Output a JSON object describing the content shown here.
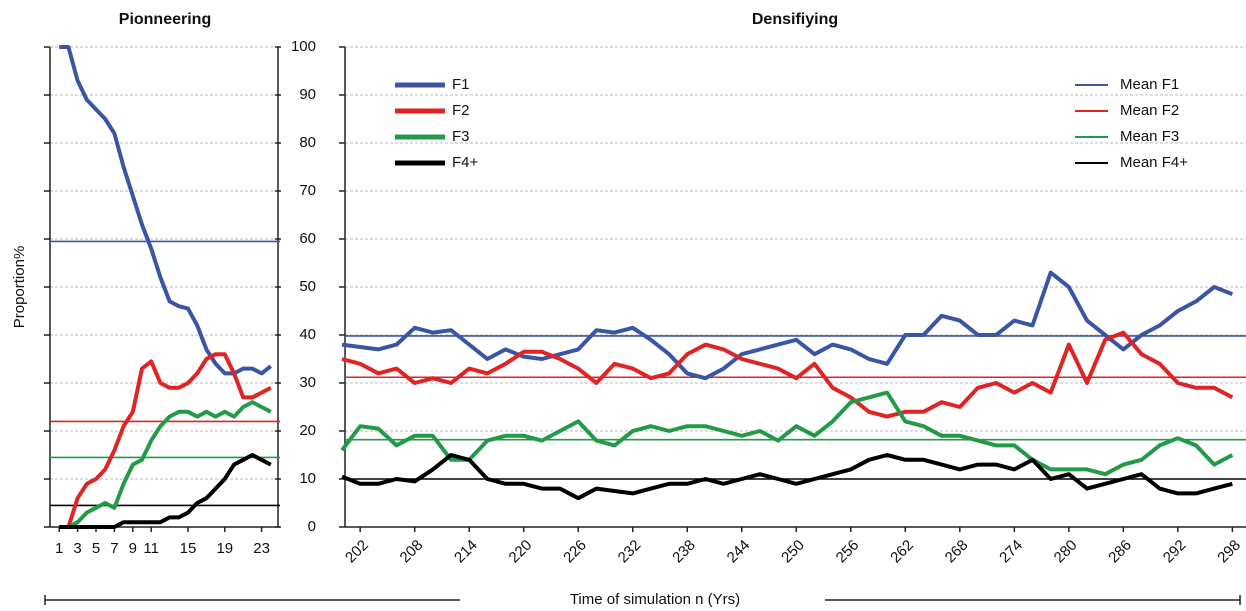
{
  "chart_data": [
    {
      "type": "line",
      "title": "Pionneering",
      "ylabel": "Proportion%",
      "x": [
        1,
        2,
        3,
        4,
        5,
        6,
        7,
        8,
        9,
        10,
        11,
        12,
        13,
        14,
        15,
        16,
        17,
        18,
        19,
        20,
        21,
        22,
        23,
        24
      ],
      "xlim": [
        0,
        25
      ],
      "xticks": [
        1,
        3,
        5,
        7,
        9,
        11,
        15,
        19,
        23
      ],
      "ylim": [
        0,
        100
      ],
      "yticks": [
        0,
        10,
        20,
        30,
        40,
        50,
        60,
        70,
        80,
        90,
        100
      ],
      "grid": true,
      "series": [
        {
          "name": "F1",
          "color": "#3a55a4",
          "values": [
            100,
            100,
            93,
            89,
            87,
            85,
            82,
            75,
            69,
            63,
            58,
            52,
            47,
            46,
            45.5,
            42,
            37,
            34,
            32,
            32,
            33,
            33,
            32,
            33.5
          ]
        },
        {
          "name": "F2",
          "color": "#e02424",
          "values": [
            0,
            0,
            6,
            9,
            10,
            12,
            16,
            21,
            24,
            33,
            34.5,
            30,
            29,
            29,
            30,
            32,
            35,
            36,
            36,
            32,
            27,
            27,
            28,
            29
          ]
        },
        {
          "name": "F3",
          "color": "#239a48",
          "values": [
            0,
            0,
            1,
            3,
            4,
            5,
            4,
            9,
            13,
            14,
            18,
            21,
            23,
            24,
            24,
            23,
            24,
            23,
            24,
            23,
            25,
            26,
            25,
            24
          ]
        },
        {
          "name": "F4+",
          "color": "#000000",
          "values": [
            0,
            0,
            0,
            0,
            0,
            0,
            0,
            1,
            1,
            1,
            1,
            1,
            2,
            2,
            3,
            5,
            6,
            8,
            10,
            13,
            14,
            15,
            14,
            13
          ]
        }
      ],
      "means": [
        {
          "color": "#3a55a4",
          "value": 59.5
        },
        {
          "color": "#e02424",
          "value": 22
        },
        {
          "color": "#239a48",
          "value": 14.5
        },
        {
          "color": "#000000",
          "value": 4.5
        }
      ]
    },
    {
      "type": "line",
      "title": "Densifiying",
      "xlabel": "Time of simulation n (Yrs)",
      "x": [
        200,
        202,
        204,
        206,
        208,
        210,
        212,
        214,
        216,
        218,
        220,
        222,
        224,
        226,
        228,
        230,
        232,
        234,
        236,
        238,
        240,
        242,
        244,
        246,
        248,
        250,
        252,
        254,
        256,
        258,
        260,
        262,
        264,
        266,
        268,
        270,
        272,
        274,
        276,
        278,
        280,
        282,
        284,
        286,
        288,
        290,
        292,
        294,
        296,
        298
      ],
      "xlim": [
        200,
        299.5
      ],
      "xticks": [
        202,
        208,
        214,
        220,
        226,
        232,
        238,
        244,
        250,
        256,
        262,
        268,
        274,
        280,
        286,
        292,
        298
      ],
      "ylim": [
        0,
        100
      ],
      "yticks": [
        0,
        10,
        20,
        30,
        40,
        50,
        60,
        70,
        80,
        90,
        100
      ],
      "grid": true,
      "legend": "upper left",
      "means_legend": "upper right",
      "series": [
        {
          "name": "F1",
          "color": "#3a55a4",
          "values": [
            38,
            37.5,
            37,
            38,
            41.5,
            40.5,
            41,
            38,
            35,
            37,
            35.5,
            35,
            36,
            37,
            41,
            40.5,
            41.5,
            39,
            36,
            32,
            31,
            33,
            36,
            37,
            38,
            39,
            36,
            38,
            37,
            35,
            34,
            40,
            40,
            44,
            43,
            40,
            40,
            43,
            42,
            53,
            50,
            43,
            40,
            37,
            40,
            42,
            45,
            47,
            50,
            48.5
          ]
        },
        {
          "name": "F2",
          "color": "#e02424",
          "values": [
            35,
            34,
            32,
            33,
            30,
            31,
            30,
            33,
            32,
            34,
            36.5,
            36.5,
            35,
            33,
            30,
            34,
            33,
            31,
            32,
            36,
            38,
            37,
            35,
            34,
            33,
            31,
            34,
            29,
            27,
            24,
            23,
            24,
            24,
            26,
            25,
            29,
            30,
            28,
            30,
            28,
            38,
            30,
            39,
            40.5,
            36,
            34,
            30,
            29,
            29,
            27
          ]
        },
        {
          "name": "F3",
          "color": "#239a48",
          "values": [
            16,
            21,
            20.5,
            17,
            19,
            19,
            14,
            14,
            18,
            19,
            19,
            18,
            20,
            22,
            18,
            17,
            20,
            21,
            20,
            21,
            21,
            20,
            19,
            20,
            18,
            21,
            19,
            22,
            26,
            27,
            28,
            22,
            21,
            19,
            19,
            18,
            17,
            17,
            14,
            12,
            12,
            12,
            11,
            13,
            14,
            17,
            18.5,
            17,
            13,
            15
          ]
        },
        {
          "name": "F4+",
          "color": "#000000",
          "values": [
            10.5,
            9,
            9,
            10,
            9.5,
            12,
            15,
            14,
            10,
            9,
            9,
            8,
            8,
            6,
            8,
            7.5,
            7,
            8,
            9,
            9,
            10,
            9,
            10,
            11,
            10,
            9,
            10,
            11,
            12,
            14,
            15,
            14,
            14,
            13,
            12,
            13,
            13,
            12,
            14,
            10,
            11,
            8,
            9,
            10,
            11,
            8,
            7,
            7,
            8,
            9
          ]
        }
      ],
      "means": [
        {
          "name": "Mean F1",
          "color": "#3a55a4",
          "value": 39.8
        },
        {
          "name": "Mean F2",
          "color": "#e02424",
          "value": 31.2
        },
        {
          "name": "Mean F3",
          "color": "#239a48",
          "value": 18.2
        },
        {
          "name": "Mean F4+",
          "color": "#000000",
          "value": 10
        }
      ]
    }
  ]
}
